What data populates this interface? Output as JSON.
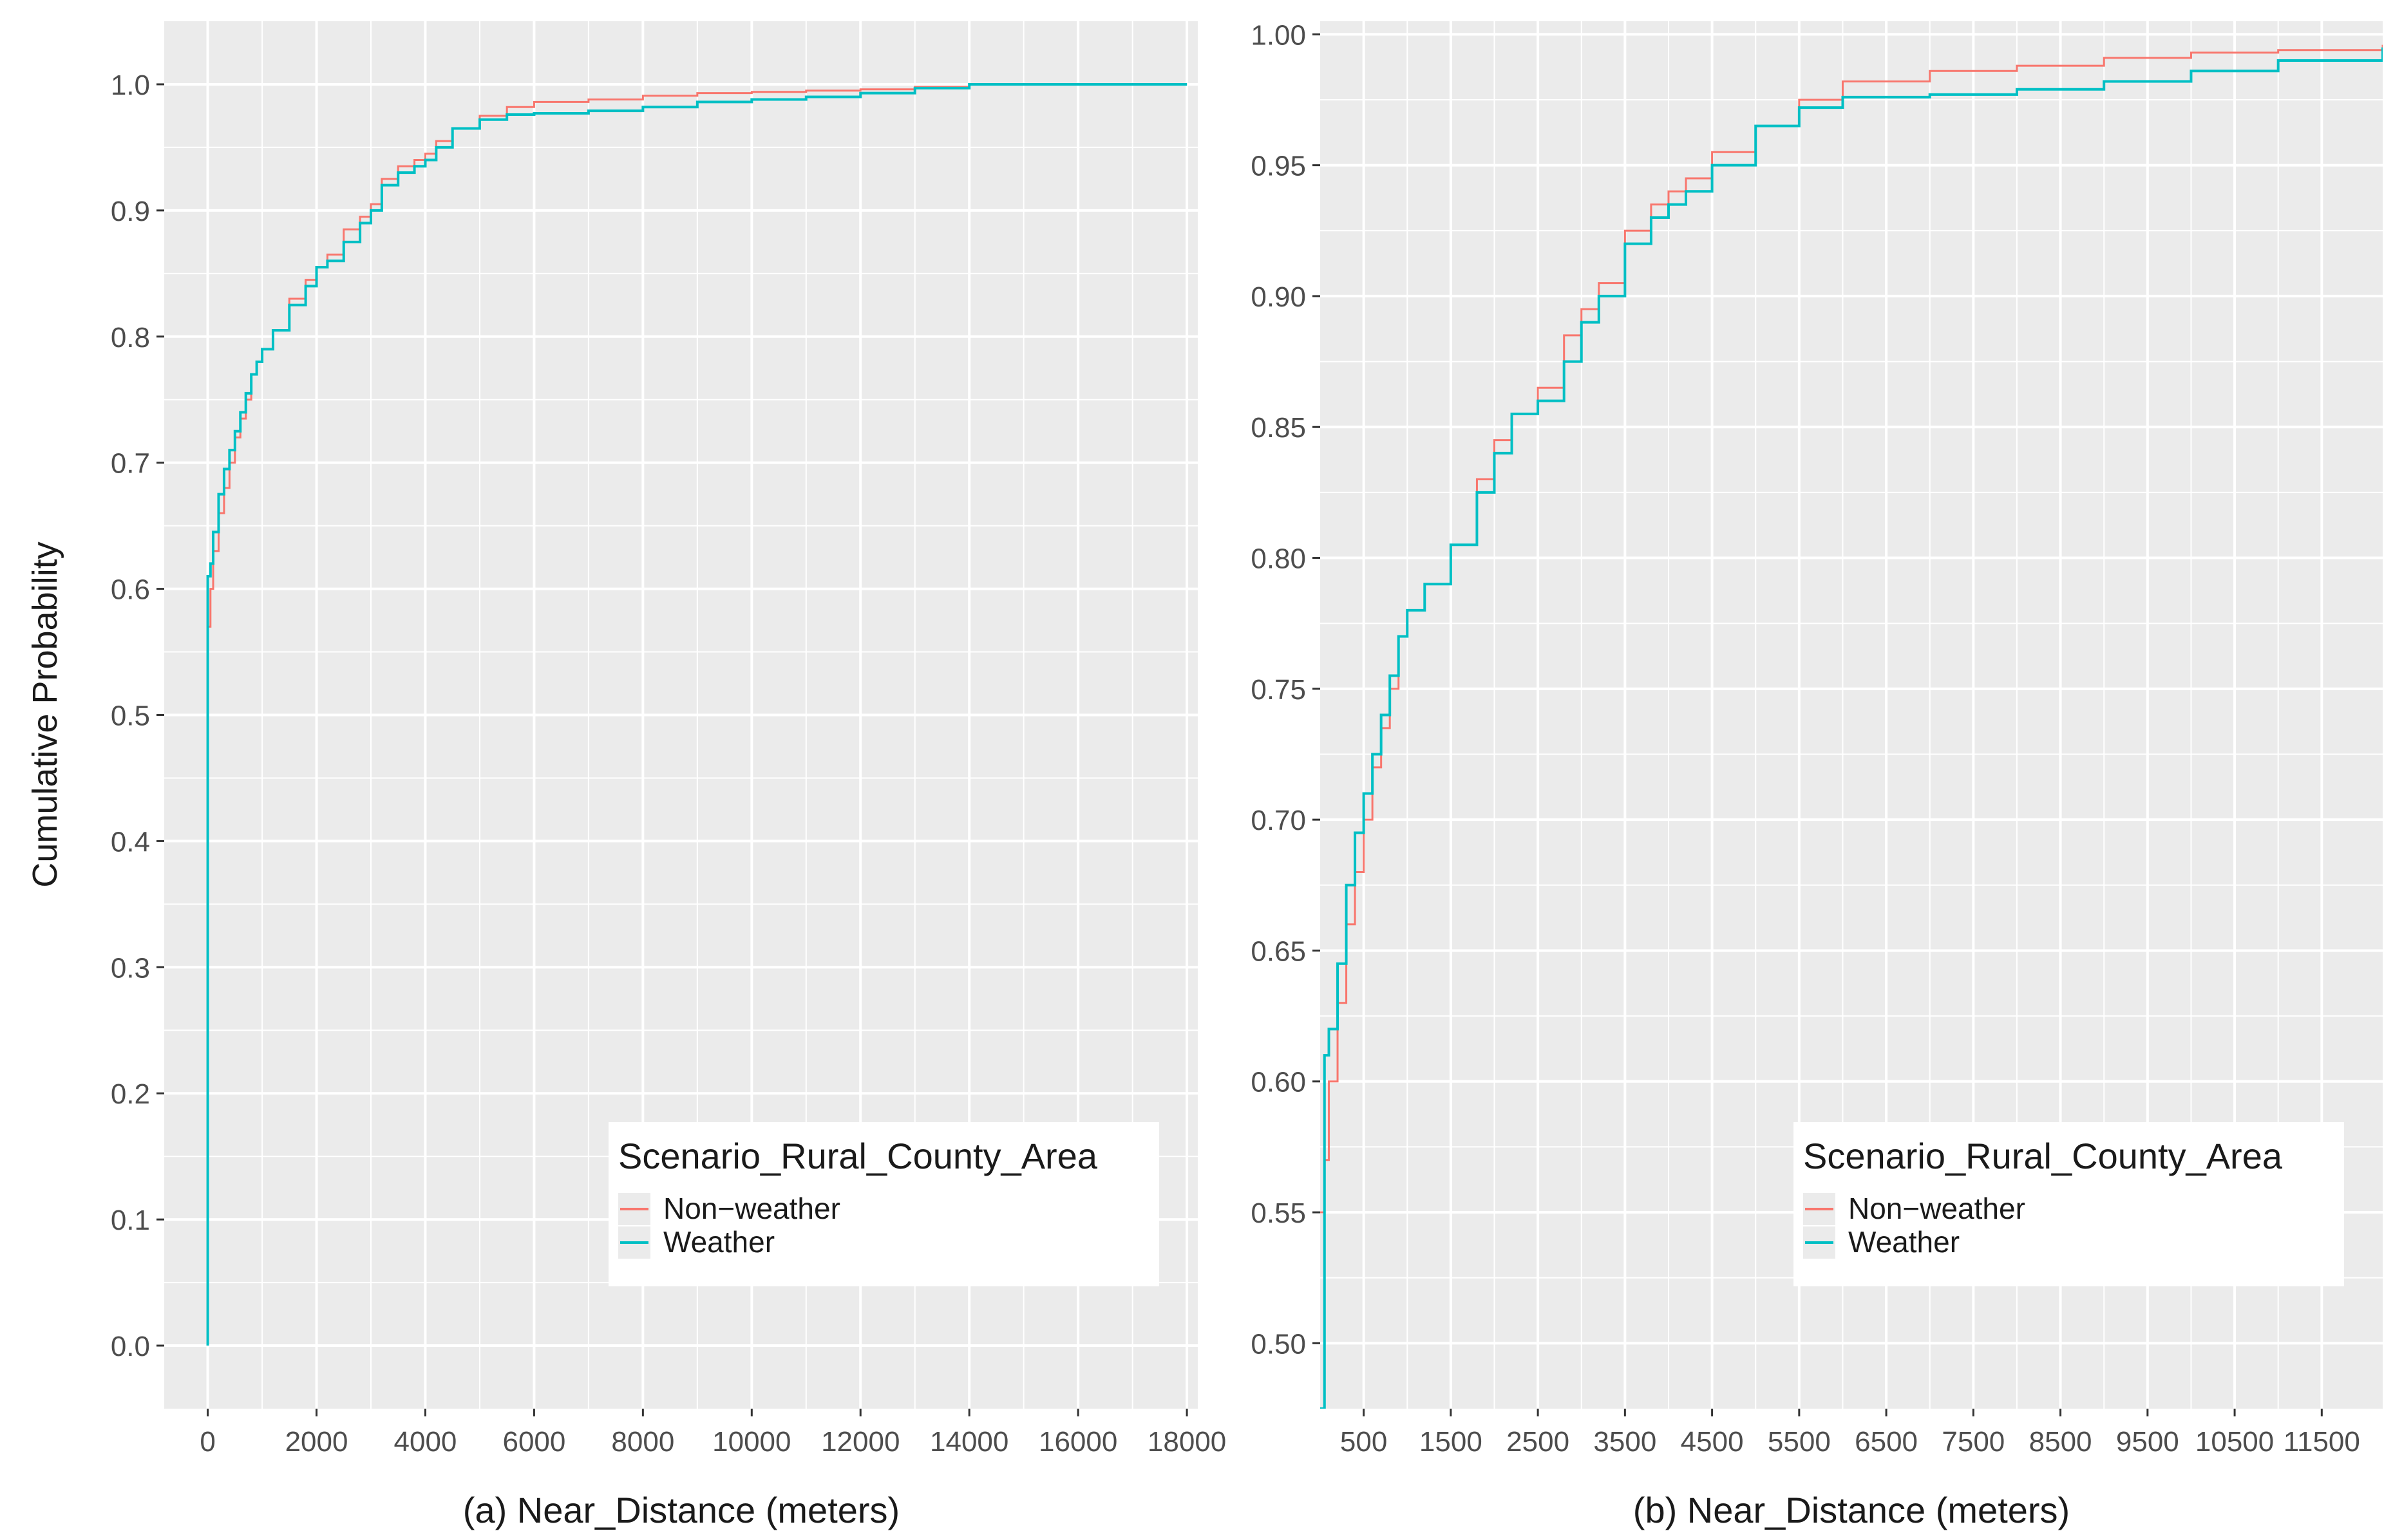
{
  "y_axis_title": "Cumulative Probability",
  "legend": {
    "title": "Scenario_Rural_County_Area",
    "items": [
      "Non−weather",
      "Weather"
    ]
  },
  "colors": {
    "non_weather": "#F8766D",
    "weather": "#00BFC4",
    "panel_bg": "#EBEBEB",
    "grid": "#FFFFFF"
  },
  "chart_data": [
    {
      "type": "line",
      "subtype": "ecdf-step",
      "caption": "(a) Near_Distance (meters)",
      "xlabel": "(a) Near_Distance (meters)",
      "ylabel": "Cumulative Probability",
      "xlim": [
        -800,
        18200
      ],
      "ylim": [
        -0.05,
        1.05
      ],
      "x_ticks": [
        0,
        2000,
        4000,
        6000,
        8000,
        10000,
        12000,
        14000,
        16000,
        18000
      ],
      "x_tick_labels": [
        "0",
        "2000",
        "4000",
        "6000",
        "8000",
        "10000",
        "12000",
        "14000",
        "16000",
        "18000"
      ],
      "y_ticks": [
        0,
        0.1,
        0.2,
        0.3,
        0.4,
        0.5,
        0.6,
        0.7,
        0.8,
        0.9,
        1.0
      ],
      "y_tick_labels": [
        "0.0",
        "0.1",
        "0.2",
        "0.3",
        "0.4",
        "0.5",
        "0.6",
        "0.7",
        "0.8",
        "0.9",
        "1.0"
      ],
      "grid": true,
      "legend_position": "bottom-right",
      "series": [
        {
          "name": "Non−weather",
          "x": [
            0,
            0,
            50,
            100,
            200,
            300,
            400,
            500,
            600,
            700,
            800,
            900,
            1000,
            1200,
            1500,
            1800,
            2000,
            2200,
            2500,
            2800,
            3000,
            3200,
            3500,
            3800,
            4000,
            4200,
            4500,
            5000,
            5500,
            6000,
            7000,
            8000,
            9000,
            10000,
            11000,
            12000,
            13000,
            14000,
            18000
          ],
          "y": [
            0.56,
            0.57,
            0.6,
            0.63,
            0.66,
            0.68,
            0.7,
            0.72,
            0.735,
            0.75,
            0.77,
            0.78,
            0.79,
            0.805,
            0.83,
            0.845,
            0.855,
            0.865,
            0.885,
            0.895,
            0.905,
            0.925,
            0.935,
            0.94,
            0.945,
            0.955,
            0.965,
            0.975,
            0.982,
            0.986,
            0.988,
            0.991,
            0.993,
            0.994,
            0.995,
            0.996,
            0.998,
            1.0,
            1.0
          ]
        },
        {
          "name": "Weather",
          "x": [
            0,
            0,
            50,
            100,
            200,
            300,
            400,
            500,
            600,
            700,
            800,
            900,
            1000,
            1200,
            1500,
            1800,
            2000,
            2200,
            2500,
            2800,
            3000,
            3200,
            3500,
            3800,
            4000,
            4200,
            4500,
            5000,
            5500,
            6000,
            7000,
            8000,
            9000,
            10000,
            11000,
            12000,
            13000,
            14000,
            18000
          ],
          "y": [
            0.0,
            0.61,
            0.62,
            0.645,
            0.675,
            0.695,
            0.71,
            0.725,
            0.74,
            0.755,
            0.77,
            0.78,
            0.79,
            0.805,
            0.825,
            0.84,
            0.855,
            0.86,
            0.875,
            0.89,
            0.9,
            0.92,
            0.93,
            0.935,
            0.94,
            0.95,
            0.965,
            0.972,
            0.976,
            0.977,
            0.979,
            0.982,
            0.986,
            0.988,
            0.99,
            0.993,
            0.997,
            1.0,
            1.0
          ]
        }
      ]
    },
    {
      "type": "line",
      "subtype": "ecdf-step",
      "caption": "(b) Near_Distance (meters)",
      "xlabel": "(b) Near_Distance (meters)",
      "ylabel": "",
      "xlim": [
        0,
        12200
      ],
      "ylim": [
        0.475,
        1.005
      ],
      "x_ticks": [
        500,
        1500,
        2500,
        3500,
        4500,
        5500,
        6500,
        7500,
        8500,
        9500,
        10500,
        11500
      ],
      "x_tick_labels": [
        "500",
        "1500",
        "2500",
        "3500",
        "4500",
        "5500",
        "6500",
        "7500",
        "8500",
        "9500",
        "10500",
        "11500"
      ],
      "y_ticks": [
        0.5,
        0.55,
        0.6,
        0.65,
        0.7,
        0.75,
        0.8,
        0.85,
        0.9,
        0.95,
        1.0
      ],
      "y_tick_labels": [
        "0.50",
        "0.55",
        "0.60",
        "0.65",
        "0.70",
        "0.75",
        "0.80",
        "0.85",
        "0.90",
        "0.95",
        "1.00"
      ],
      "grid": true,
      "legend_position": "bottom-right",
      "series": [
        {
          "name": "Non−weather",
          "x": [
            0,
            50,
            100,
            200,
            300,
            400,
            500,
            600,
            700,
            800,
            900,
            1000,
            1200,
            1500,
            1800,
            2000,
            2200,
            2500,
            2800,
            3000,
            3200,
            3500,
            3800,
            4000,
            4200,
            4500,
            5000,
            5500,
            6000,
            7000,
            8000,
            9000,
            10000,
            11000,
            12200
          ],
          "y": [
            0.55,
            0.57,
            0.6,
            0.63,
            0.66,
            0.68,
            0.7,
            0.72,
            0.735,
            0.75,
            0.77,
            0.78,
            0.79,
            0.805,
            0.83,
            0.845,
            0.855,
            0.865,
            0.885,
            0.895,
            0.905,
            0.925,
            0.935,
            0.94,
            0.945,
            0.955,
            0.965,
            0.975,
            0.982,
            0.986,
            0.988,
            0.991,
            0.993,
            0.994,
            0.996
          ]
        },
        {
          "name": "Weather",
          "x": [
            0,
            50,
            100,
            200,
            300,
            400,
            500,
            600,
            700,
            800,
            900,
            1000,
            1200,
            1500,
            1800,
            2000,
            2200,
            2500,
            2800,
            3000,
            3200,
            3500,
            3800,
            4000,
            4200,
            4500,
            5000,
            5500,
            6000,
            7000,
            8000,
            9000,
            10000,
            11000,
            12200
          ],
          "y": [
            0.475,
            0.61,
            0.62,
            0.645,
            0.675,
            0.695,
            0.71,
            0.725,
            0.74,
            0.755,
            0.77,
            0.78,
            0.79,
            0.805,
            0.825,
            0.84,
            0.855,
            0.86,
            0.875,
            0.89,
            0.9,
            0.92,
            0.93,
            0.935,
            0.94,
            0.95,
            0.965,
            0.972,
            0.976,
            0.977,
            0.979,
            0.982,
            0.986,
            0.99,
            0.995
          ]
        }
      ]
    }
  ]
}
